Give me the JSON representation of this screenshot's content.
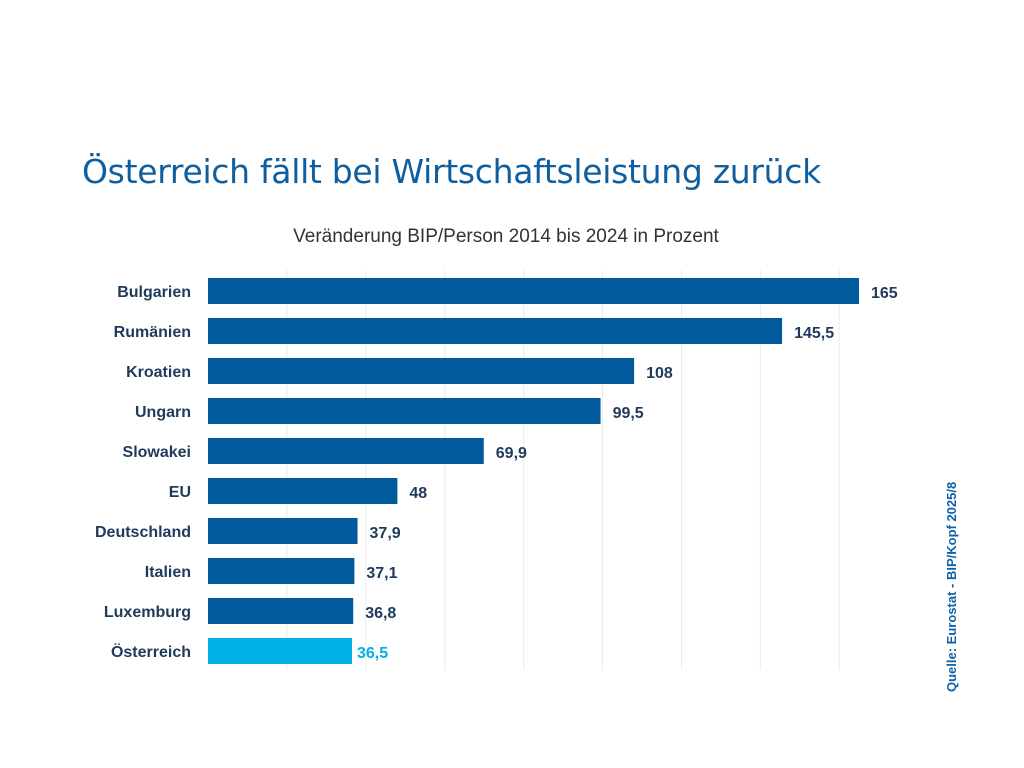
{
  "chart_data": {
    "type": "bar",
    "orientation": "horizontal",
    "title": "Österreich fällt bei Wirtschaftsleistung zurück",
    "subtitle": "Veränderung BIP/Person 2014 bis 2024 in Prozent",
    "categories": [
      "Bulgarien",
      "Rumänien",
      "Kroatien",
      "Ungarn",
      "Slowakei",
      "EU",
      "Deutschland",
      "Italien",
      "Luxemburg",
      "Österreich"
    ],
    "values": [
      165,
      145.5,
      108,
      99.5,
      69.9,
      48,
      37.9,
      37.1,
      36.8,
      36.5
    ],
    "value_labels": [
      "165",
      "145,5",
      "108",
      "99,5",
      "69,9",
      "48",
      "37,9",
      "37,1",
      "36,8",
      "36,5"
    ],
    "highlight": "Österreich",
    "xlim": [
      0,
      165
    ],
    "grid_step": 20,
    "colors": {
      "bar": "#005a9c",
      "highlight": "#00b0e6",
      "label": "#1f3a5a",
      "title": "#0f5fa0"
    },
    "source": "Quelle: Eurostat - BIP/Kopf 2025/8"
  }
}
